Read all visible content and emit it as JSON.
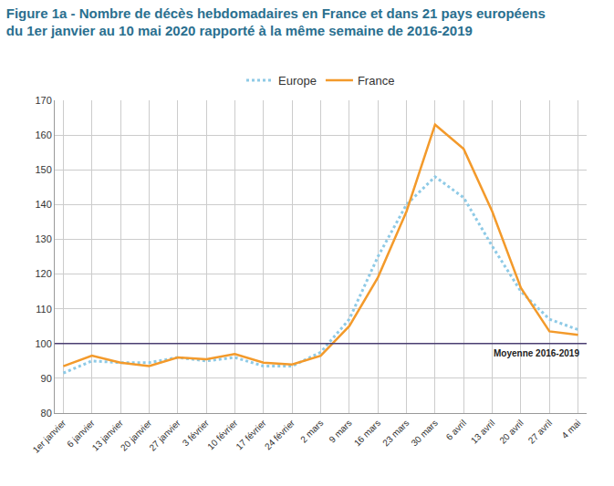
{
  "chart_data": {
    "type": "line",
    "title": "Figure 1a - Nombre de décès hebdomadaires en France et dans 21 pays européens du 1er janvier au 10 mai 2020 rapporté à la même semaine de 2016-2019",
    "categories": [
      "1er janvier",
      "6 janvier",
      "13 janvier",
      "20 janvier",
      "27 janvier",
      "3 février",
      "10 février",
      "17 février",
      "24 février",
      "2 mars",
      "9 mars",
      "16 mars",
      "23 mars",
      "30 mars",
      "6 avril",
      "13 avril",
      "20 avril",
      "27 avril",
      "4 mai"
    ],
    "series": [
      {
        "name": "Europe",
        "color": "#8ecae6",
        "line_style": "dot",
        "values": [
          91.5,
          95,
          94.5,
          94.5,
          96,
          95,
          96,
          93.5,
          93.5,
          97.5,
          107,
          125,
          140,
          148,
          142,
          128,
          115,
          107,
          104
        ]
      },
      {
        "name": "France",
        "color": "#f39a2b",
        "line_style": "solid",
        "values": [
          93.5,
          96.5,
          94.5,
          93.5,
          96,
          95.5,
          97,
          94.5,
          94,
          96.5,
          105,
          119,
          138,
          163,
          156,
          138,
          116,
          103.5,
          102.5
        ]
      }
    ],
    "annotations": [
      {
        "text": "Moyenne 2016-2019",
        "y": 100,
        "color": "#4b3f72"
      }
    ],
    "ylim": [
      80,
      170
    ],
    "yticks": [
      80,
      90,
      100,
      110,
      120,
      130,
      140,
      150,
      160,
      170
    ],
    "grid": true,
    "legend": "top"
  }
}
